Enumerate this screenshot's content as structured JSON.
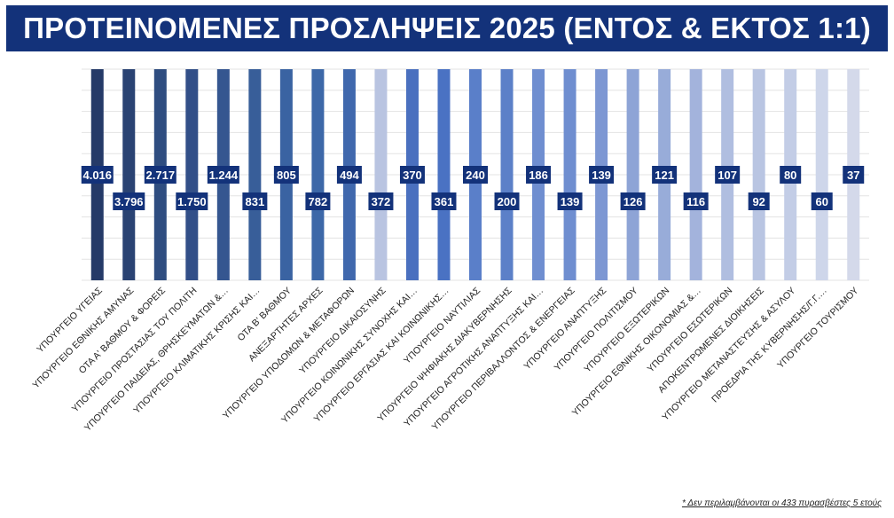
{
  "title": "ΠΡΟΤΕΙΝΟΜΕΝΕΣ ΠΡΟΣΛΗΨΕΙΣ 2025 (ΕΝΤΟΣ & ΕΚΤΟΣ 1:1)",
  "footnote": "* Δεν περιλαμβάνονται οι 433 πυρασβέστες 5 ετούς",
  "colors": {
    "title_bg": "#13327a",
    "label_bg": "#13327a",
    "label_text": "#ffffff"
  },
  "chart_data": {
    "type": "bar",
    "grid": true,
    "legend": "none",
    "categories": [
      "ΥΠΟΥΡΓΕΙΟ ΥΓΕΙΑΣ",
      "ΥΠΟΥΡΓΕΙΟ ΕΘΝΙΚΗΣ ΑΜΥΝΑΣ",
      "ΟΤΑ Α' ΒΑΘΜΟΥ & ΦΟΡΕΙΣ",
      "ΥΠΟΥΡΓΕΙΟ ΠΡΟΣΤΑΣΙΑΣ ΤΟΥ ΠΟΛΙΤΗ",
      "ΥΠΟΥΡΓΕΙΟ ΠΑΙΔΕΙΑΣ, ΘΡΗΣΚΕΥΜΑΤΩΝ &…",
      "ΥΠΟΥΡΓΕΙΟ ΚΛΙΜΑΤΙΚΗΣ ΚΡΙΣΗΣ ΚΑΙ…",
      "ΟΤΑ Β' ΒΑΘΜΟΥ",
      "ΑΝΕΞΑΡΤΗΤΕΣ ΑΡΧΕΣ",
      "ΥΠΟΥΡΓΕΙΟ ΥΠΟΔΟΜΩΝ & ΜΕΤΑΦΟΡΩΝ",
      "ΥΠΟΥΡΓΕΙΟ ΔΙΚΑΙΟΣΥΝΗΣ",
      "ΥΠΟΥΡΓΕΙΟ ΚΟΙΝΩΝΙΚΗΣ ΣΥΝΟΧΗΣ ΚΑΙ…",
      "ΥΠΟΥΡΓΕΙΟ ΕΡΓΑΣΙΑΣ ΚΑΙ ΚΟΙΝΩΝΙΚΗΣ…",
      "ΥΠΟΥΡΓΕΙΟ ΝΑΥΤΙΛΙΑΣ",
      "ΥΠΟΥΡΓΕΙΟ ΨΗΦΙΑΚΗΣ ΔΙΑΚΥΒΕΡΝΗΣΗΣ",
      "ΥΠΟΥΡΓΕΙΟ ΑΓΡΟΤΙΚΗΣ ΑΝΑΠΤΥΞΗΣ ΚΑΙ…",
      "ΥΠΟΥΡΓΕΙΟ ΠΕΡΙΒΑΛΛΟΝΤΟΣ & ΕΝΕΡΓΕΙΑΣ",
      "ΥΠΟΥΡΓΕΙΟ ΑΝΑΠΤΥΞΗΣ",
      "ΥΠΟΥΡΓΕΙΟ ΠΟΛΙΤΙΣΜΟΥ",
      "ΥΠΟΥΡΓΕΙΟ ΕΞΩΤΕΡΙΚΩΝ",
      "ΥΠΟΥΡΓΕΙΟ ΕΘΝΙΚΗΣ ΟΙΚΟΝΟΜΙΑΣ &…",
      "ΥΠΟΥΡΓΕΙΟ ΕΣΩΤΕΡΙΚΩΝ",
      "ΑΠΟΚΕΝΤΡΩΜΕΝΕΣ ΔΙΟΙΚΗΣΕΙΣ",
      "ΥΠΟΥΡΓΕΙΟ ΜΕΤΑΝΑΣΤΕΥΣΗΣ & ΑΣΥΛΟΥ",
      "ΠΡΟΕΔΡΙΑ ΤΗΣ ΚΥΒΕΡΝΗΣΗΣ/Γ.Γ.…",
      "ΥΠΟΥΡΓΕΙΟ ΤΟΥΡΙΣΜΟΥ"
    ],
    "values": [
      4016,
      3796,
      2717,
      1750,
      1244,
      831,
      805,
      782,
      494,
      372,
      370,
      361,
      240,
      200,
      186,
      139,
      139,
      126,
      121,
      116,
      107,
      92,
      80,
      60,
      37
    ],
    "data_labels": [
      "4.016",
      "3.796",
      "2.717",
      "1.750",
      "1.244",
      "831",
      "805",
      "782",
      "494",
      "372",
      "370",
      "361",
      "240",
      "200",
      "186",
      "139",
      "139",
      "126",
      "121",
      "116",
      "107",
      "92",
      "80",
      "60",
      "37"
    ],
    "bar_colors": [
      "#253a68",
      "#2a4373",
      "#2f4d80",
      "#324f88",
      "#355690",
      "#385e99",
      "#3a63a2",
      "#3d68a8",
      "#4068ad",
      "#b9c4e1",
      "#4a70bf",
      "#4a72c3",
      "#5a7fc9",
      "#5c80c8",
      "#6f8ed0",
      "#6f8ed0",
      "#7d97d3",
      "#8ea4d6",
      "#98acd9",
      "#a3b3dc",
      "#b0bee0",
      "#b9c5e2",
      "#c3cde6",
      "#ced6ea",
      "#d4d9ea"
    ]
  }
}
